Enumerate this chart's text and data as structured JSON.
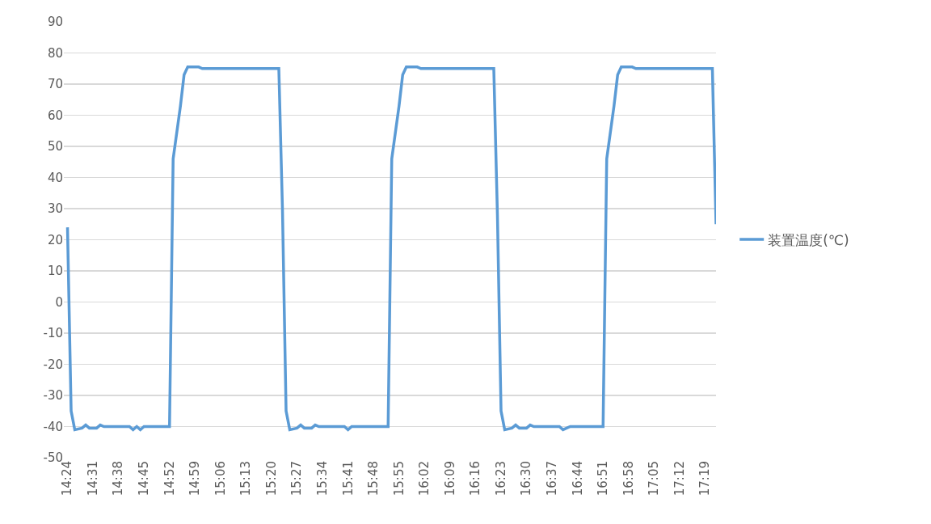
{
  "chart_data": {
    "type": "line",
    "x": [
      14.4,
      14.4167,
      14.4333,
      14.4667,
      14.4833,
      14.5,
      14.5333,
      14.55,
      14.5667,
      14.6833,
      14.7,
      14.7167,
      14.7333,
      14.75,
      14.8667,
      14.8833,
      14.9167,
      14.9333,
      14.95,
      15.0,
      15.0167,
      15.3667,
      15.3833,
      15.4,
      15.4167,
      15.45,
      15.4667,
      15.4833,
      15.5167,
      15.5333,
      15.55,
      15.6667,
      15.6833,
      15.7,
      15.7167,
      15.8667,
      15.8833,
      15.9167,
      15.9333,
      15.95,
      16.0,
      16.0167,
      16.35,
      16.3667,
      16.3833,
      16.4,
      16.4333,
      16.45,
      16.4667,
      16.5,
      16.5167,
      16.5333,
      16.65,
      16.6667,
      16.6833,
      16.7,
      16.85,
      16.8667,
      16.9,
      16.9167,
      16.9333,
      16.9833,
      17.0,
      17.35,
      17.3667
    ],
    "series": [
      {
        "name": "装置温度(℃)",
        "color": "#5b9bd5",
        "values": [
          24,
          -35,
          -41,
          -40.5,
          -39.5,
          -40.5,
          -40.5,
          -39.5,
          -40,
          -40,
          -41,
          -40,
          -41,
          -40,
          -40,
          46,
          63,
          73,
          75.5,
          75.5,
          75,
          75,
          30,
          -35,
          -41,
          -40.5,
          -39.5,
          -40.5,
          -40.5,
          -39.5,
          -40,
          -40,
          -41,
          -40,
          -40,
          -40,
          46,
          63,
          73,
          75.5,
          75.5,
          75,
          75,
          28,
          -35,
          -41,
          -40.5,
          -39.5,
          -40.5,
          -40.5,
          -39.5,
          -40,
          -40,
          -41,
          -40.5,
          -40,
          -40,
          46,
          63,
          73,
          75.5,
          75.5,
          75,
          75,
          25
        ]
      }
    ],
    "xlim": [
      14.3833,
      17.3667
    ],
    "xticks": [
      {
        "value": 14.4,
        "label": "14:24"
      },
      {
        "value": 14.5167,
        "label": "14:31"
      },
      {
        "value": 14.6333,
        "label": "14:38"
      },
      {
        "value": 14.75,
        "label": "14:45"
      },
      {
        "value": 14.8667,
        "label": "14:52"
      },
      {
        "value": 14.9833,
        "label": "14:59"
      },
      {
        "value": 15.1,
        "label": "15:06"
      },
      {
        "value": 15.2167,
        "label": "15:13"
      },
      {
        "value": 15.3333,
        "label": "15:20"
      },
      {
        "value": 15.45,
        "label": "15:27"
      },
      {
        "value": 15.5667,
        "label": "15:34"
      },
      {
        "value": 15.6833,
        "label": "15:41"
      },
      {
        "value": 15.8,
        "label": "15:48"
      },
      {
        "value": 15.9167,
        "label": "15:55"
      },
      {
        "value": 16.0333,
        "label": "16:02"
      },
      {
        "value": 16.15,
        "label": "16:09"
      },
      {
        "value": 16.2667,
        "label": "16:16"
      },
      {
        "value": 16.3833,
        "label": "16:23"
      },
      {
        "value": 16.5,
        "label": "16:30"
      },
      {
        "value": 16.6167,
        "label": "16:37"
      },
      {
        "value": 16.7333,
        "label": "16:44"
      },
      {
        "value": 16.85,
        "label": "16:51"
      },
      {
        "value": 16.9667,
        "label": "16:58"
      },
      {
        "value": 17.0833,
        "label": "17:05"
      },
      {
        "value": 17.2,
        "label": "17:12"
      },
      {
        "value": 17.3167,
        "label": "17:19"
      }
    ],
    "ylim": [
      -50,
      90
    ],
    "yticks": [
      -50,
      -40,
      -30,
      -20,
      -10,
      0,
      10,
      20,
      30,
      40,
      50,
      60,
      70,
      80,
      90
    ],
    "grid": "y",
    "legend": "right",
    "marker": "none",
    "line_style": "solid"
  }
}
